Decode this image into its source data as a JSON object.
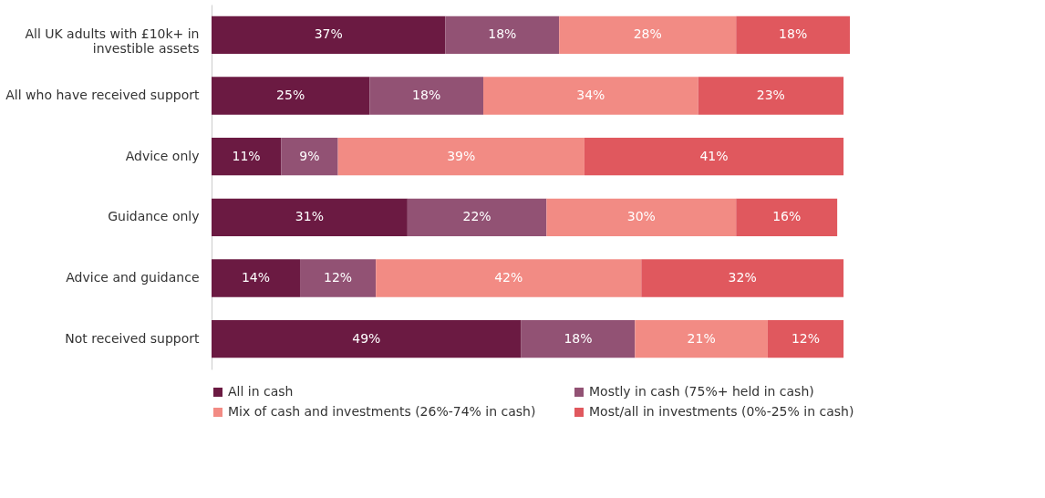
{
  "chart_data": {
    "type": "bar",
    "orientation": "horizontal",
    "stacked": true,
    "categories": [
      "All UK adults with £10k+ in investible assets",
      "All who have received support",
      "Advice only",
      "Guidance only",
      "Advice and guidance",
      "Not received support"
    ],
    "series": [
      {
        "name": "All in cash",
        "color": "#6b1a42",
        "values": [
          37,
          25,
          11,
          31,
          14,
          49
        ],
        "value_labels": [
          "37%",
          "25%",
          "11%",
          "31%",
          "14%",
          "49%"
        ]
      },
      {
        "name": "Mostly in cash (75%+ held in cash)",
        "color": "#925274",
        "values": [
          18,
          18,
          9,
          22,
          12,
          18
        ],
        "value_labels": [
          "18%",
          "18%",
          "9%",
          "22%",
          "12%",
          "18%"
        ]
      },
      {
        "name": "Mix of cash and investments (26%-74% in cash)",
        "color": "#f28b84",
        "values": [
          28,
          34,
          39,
          30,
          42,
          21
        ],
        "value_labels": [
          "28%",
          "34%",
          "39%",
          "30%",
          "42%",
          "21%"
        ]
      },
      {
        "name": "Most/all in investments (0%-25% in cash)",
        "color": "#e0585e",
        "values": [
          18,
          23,
          41,
          16,
          32,
          12
        ],
        "value_labels": [
          "18%",
          "23%",
          "41%",
          "16%",
          "32%",
          "12%"
        ]
      }
    ],
    "legend": "bottom"
  }
}
